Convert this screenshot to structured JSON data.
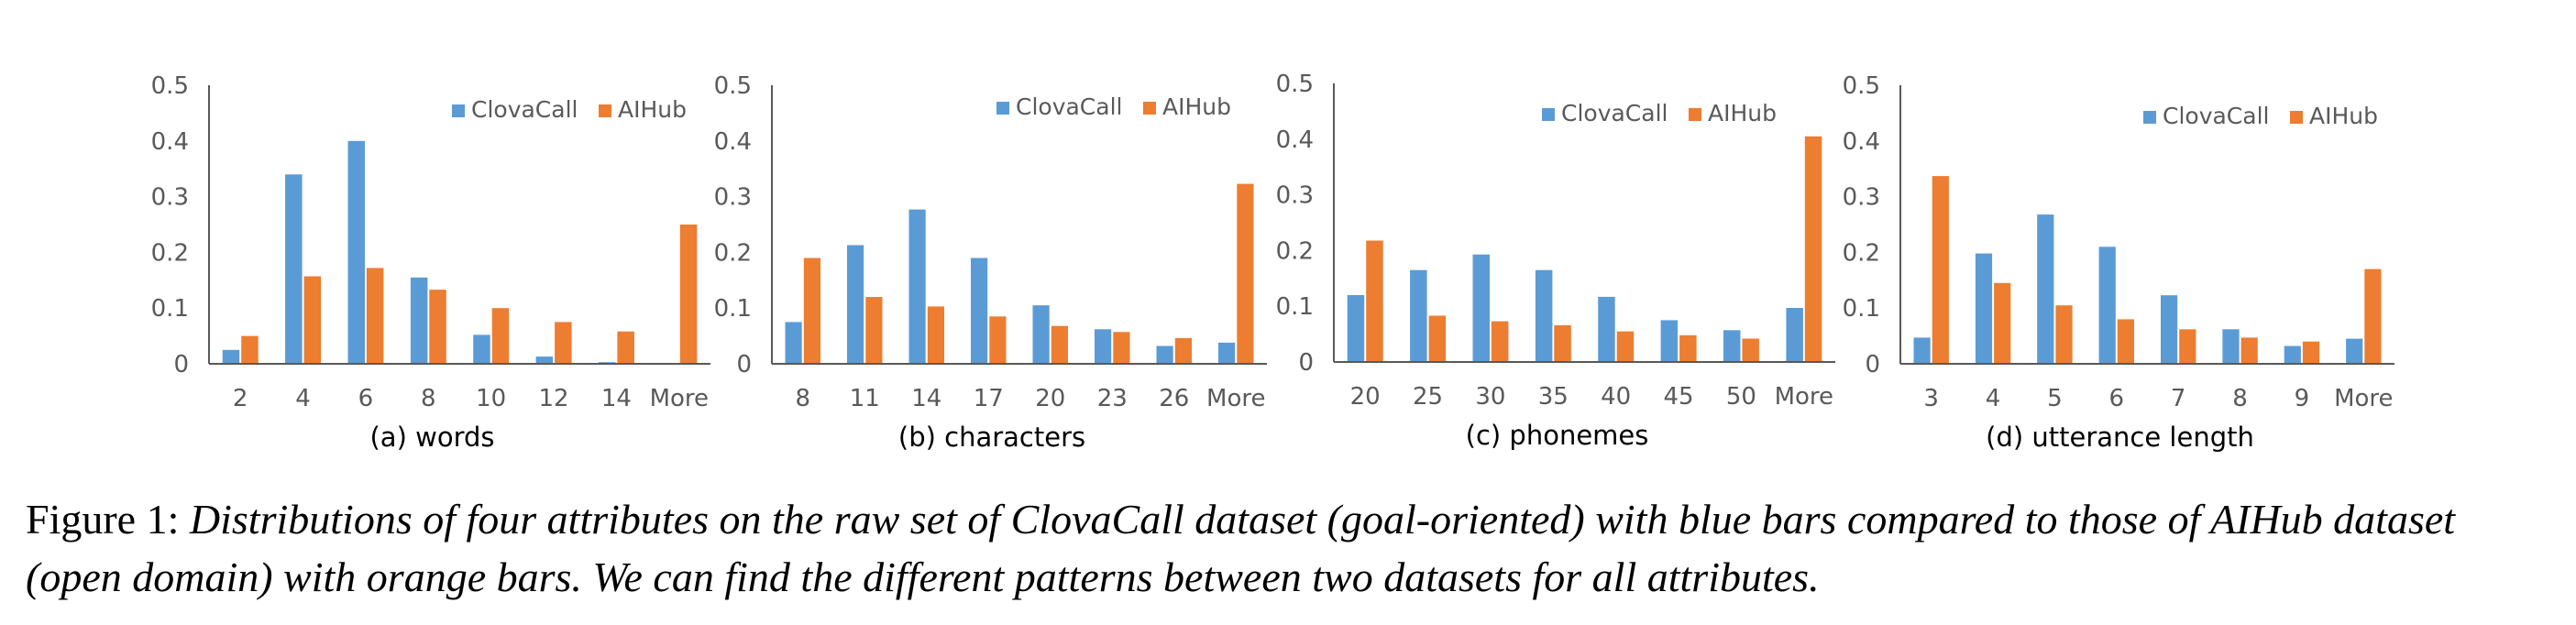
{
  "colors": {
    "clovacall": "#5b9bd5",
    "aihub": "#ed7d31",
    "axis": "#595959"
  },
  "legend": [
    "ClovaCall",
    "AIHub"
  ],
  "chart_data": [
    {
      "type": "bar",
      "title": "(a) words",
      "categories": [
        "2",
        "4",
        "6",
        "8",
        "10",
        "12",
        "14",
        "More"
      ],
      "ylim": [
        0,
        0.5
      ],
      "yticks": [
        "0",
        "0.1",
        "0.2",
        "0.3",
        "0.4",
        "0.5"
      ],
      "series": [
        {
          "name": "ClovaCall",
          "values": [
            0.025,
            0.34,
            0.4,
            0.155,
            0.052,
            0.013,
            0.003,
            0.0
          ]
        },
        {
          "name": "AIHub",
          "values": [
            0.05,
            0.157,
            0.172,
            0.133,
            0.1,
            0.075,
            0.058,
            0.25
          ]
        }
      ]
    },
    {
      "type": "bar",
      "title": "(b) characters",
      "categories": [
        "8",
        "11",
        "14",
        "17",
        "20",
        "23",
        "26",
        "More"
      ],
      "ylim": [
        0,
        0.5
      ],
      "yticks": [
        "0",
        "0.1",
        "0.2",
        "0.3",
        "0.4",
        "0.5"
      ],
      "series": [
        {
          "name": "ClovaCall",
          "values": [
            0.075,
            0.213,
            0.277,
            0.19,
            0.105,
            0.062,
            0.032,
            0.038
          ]
        },
        {
          "name": "AIHub",
          "values": [
            0.19,
            0.12,
            0.103,
            0.085,
            0.068,
            0.057,
            0.046,
            0.323
          ]
        }
      ]
    },
    {
      "type": "bar",
      "title": "(c) phonemes",
      "categories": [
        "20",
        "25",
        "30",
        "35",
        "40",
        "45",
        "50",
        "More"
      ],
      "ylim": [
        0,
        0.5
      ],
      "yticks": [
        "0",
        "0.1",
        "0.2",
        "0.3",
        "0.4",
        "0.5"
      ],
      "series": [
        {
          "name": "ClovaCall",
          "values": [
            0.12,
            0.165,
            0.193,
            0.165,
            0.117,
            0.075,
            0.057,
            0.097
          ]
        },
        {
          "name": "AIHub",
          "values": [
            0.218,
            0.083,
            0.073,
            0.066,
            0.055,
            0.048,
            0.042,
            0.405
          ]
        }
      ]
    },
    {
      "type": "bar",
      "title": "(d) utterance length",
      "categories": [
        "3",
        "4",
        "5",
        "6",
        "7",
        "8",
        "9",
        "More"
      ],
      "ylim": [
        0,
        0.5
      ],
      "yticks": [
        "0",
        "0.1",
        "0.2",
        "0.3",
        "0.4",
        "0.5"
      ],
      "series": [
        {
          "name": "ClovaCall",
          "values": [
            0.047,
            0.198,
            0.268,
            0.21,
            0.123,
            0.062,
            0.032,
            0.045
          ]
        },
        {
          "name": "AIHub",
          "values": [
            0.337,
            0.145,
            0.105,
            0.08,
            0.062,
            0.047,
            0.04,
            0.17
          ]
        }
      ]
    }
  ],
  "caption": {
    "label": "Figure 1:",
    "text": "Distributions of four attributes on the raw set of ClovaCall dataset (goal-oriented) with blue bars compared to those of AIHub dataset (open domain) with orange bars. We can find the different patterns between two datasets for all attributes."
  }
}
